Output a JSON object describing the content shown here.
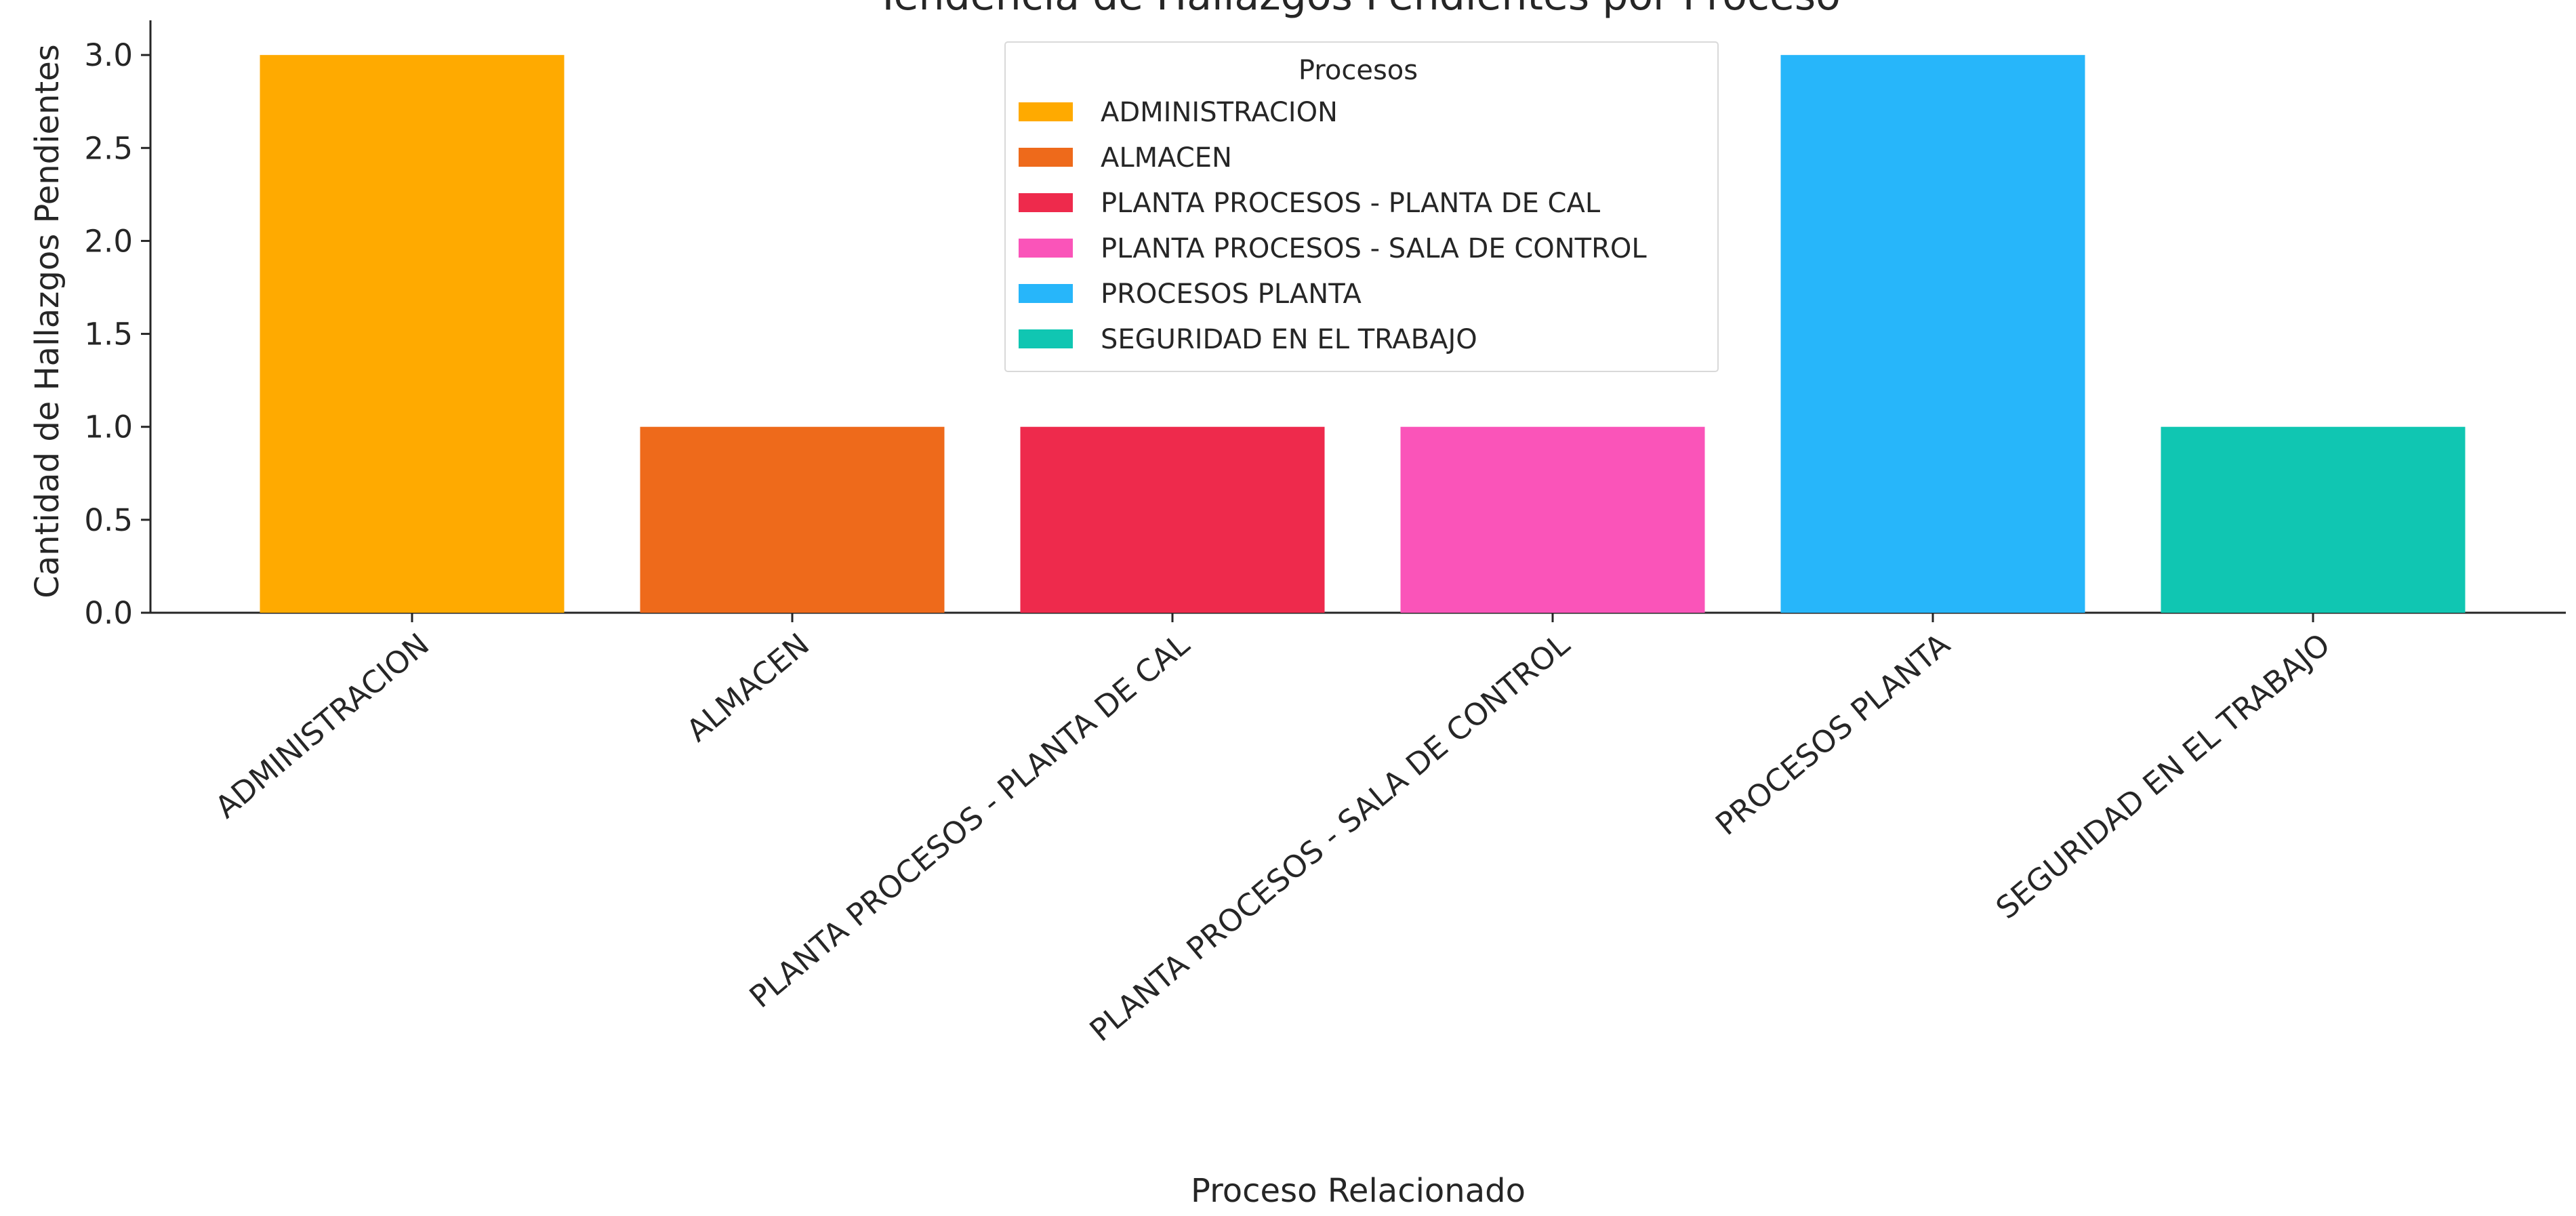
{
  "chart_data": {
    "type": "bar",
    "title": "Tendencia de Hallazgos Pendientes por Proceso",
    "xlabel": "Proceso Relacionado",
    "ylabel": "Cantidad de Hallazgos Pendientes",
    "categories": [
      "ADMINISTRACION",
      "ALMACEN",
      "PLANTA PROCESOS - PLANTA DE CAL",
      "PLANTA PROCESOS - SALA DE CONTROL",
      "PROCESOS PLANTA",
      "SEGURIDAD EN EL TRABAJO"
    ],
    "values": [
      3,
      1,
      1,
      1,
      3,
      1
    ],
    "colors": [
      "#FFAA00",
      "#EE6A1B",
      "#EE2A4C",
      "#FA54B9",
      "#27B6FA",
      "#10C6B2"
    ],
    "ylim": [
      0,
      3.15
    ],
    "yticks": [
      0.0,
      0.5,
      1.0,
      1.5,
      2.0,
      2.5,
      3.0
    ],
    "grid": false,
    "legend": {
      "title": "Procesos",
      "placement": "top-center",
      "entries": [
        "ADMINISTRACION",
        "ALMACEN",
        "PLANTA PROCESOS - PLANTA DE CAL",
        "PLANTA PROCESOS - SALA DE CONTROL",
        "PROCESOS PLANTA",
        "SEGURIDAD EN EL TRABAJO"
      ]
    }
  }
}
